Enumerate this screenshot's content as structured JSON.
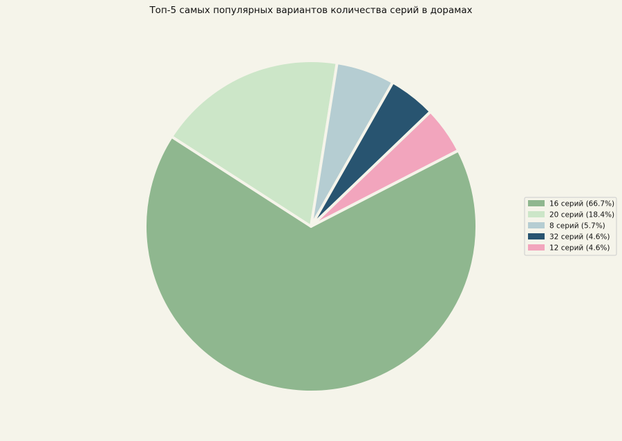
{
  "chart_data": {
    "type": "pie",
    "title": "Топ-5 самых популярных вариантов количества серий в дорамах",
    "slices": [
      {
        "label": "16 серий (66.7%)",
        "value": 66.7,
        "color": "#8fb78f"
      },
      {
        "label": "20 серий (18.4%)",
        "value": 18.4,
        "color": "#cce6c8"
      },
      {
        "label": "8 серий (5.7%)",
        "value": 5.7,
        "color": "#b5cdd2"
      },
      {
        "label": "32 серий (4.6%)",
        "value": 4.6,
        "color": "#285470"
      },
      {
        "label": "12 серий (4.6%)",
        "value": 4.6,
        "color": "#f2a5bd"
      }
    ],
    "legend_position": "right",
    "background": "#f5f4ea"
  }
}
